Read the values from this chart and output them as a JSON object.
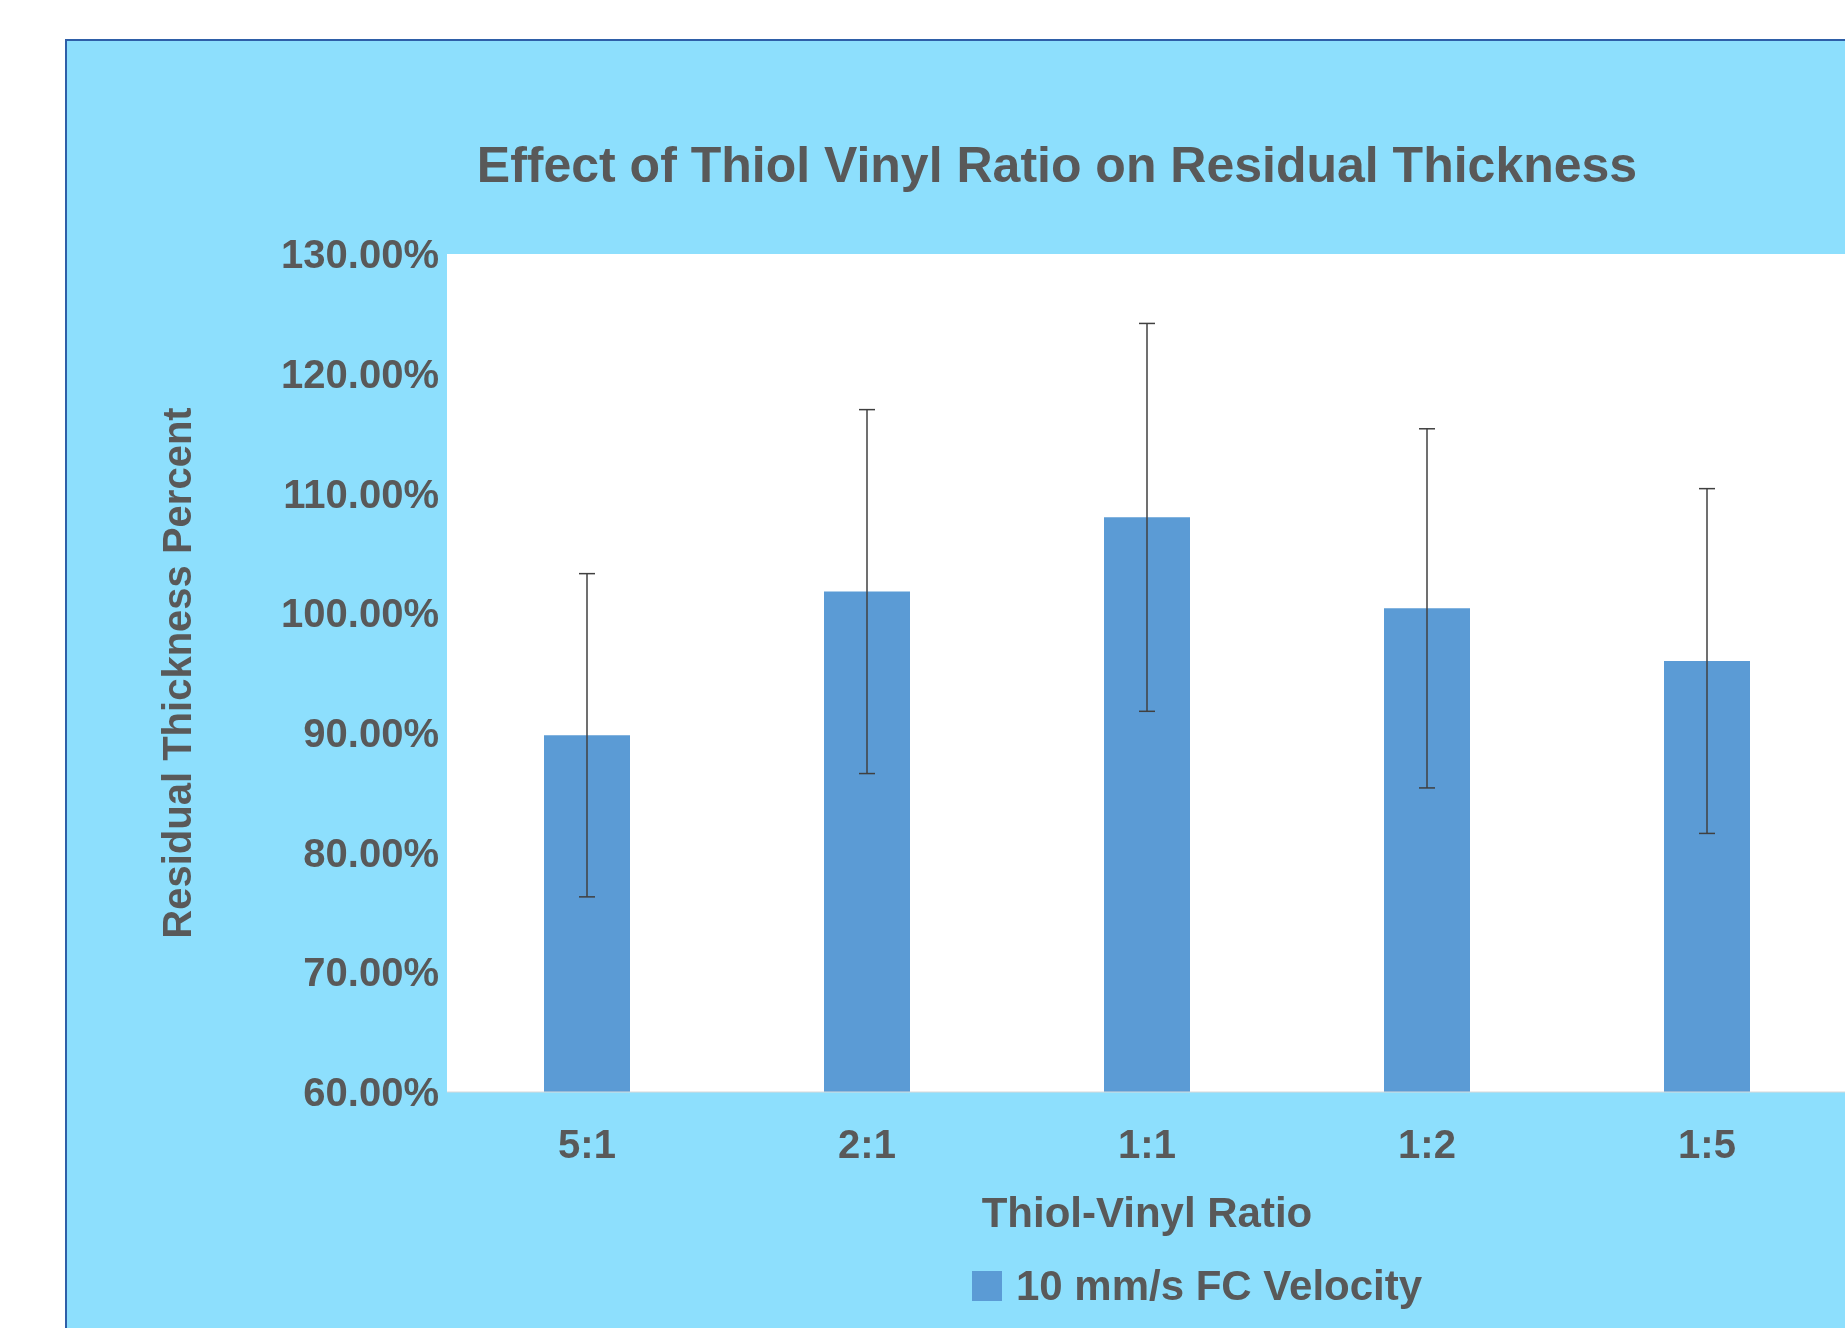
{
  "chart_data": {
    "type": "bar",
    "title": "Effect of Thiol Vinyl Ratio on Residual Thickness",
    "xlabel": "Thiol-Vinyl Ratio",
    "ylabel": "Residual Thickness Percent",
    "categories": [
      "5:1",
      "2:1",
      "1:1",
      "1:2",
      "1:5"
    ],
    "series": [
      {
        "name": "10 mm/s FC Velocity",
        "color": "#5b9bd5",
        "values": [
          89.8,
          101.8,
          108.0,
          100.4,
          96.0
        ],
        "errors": [
          13.5,
          15.2,
          16.2,
          15.0,
          14.4
        ]
      }
    ],
    "ylim": [
      60,
      130
    ],
    "yticks": [
      {
        "value": 60,
        "label": "60.00%"
      },
      {
        "value": 70,
        "label": "70.00%"
      },
      {
        "value": 80,
        "label": "80.00%"
      },
      {
        "value": 90,
        "label": "90.00%"
      },
      {
        "value": 100,
        "label": "100.00%"
      },
      {
        "value": 110,
        "label": "110.00%"
      },
      {
        "value": 120,
        "label": "120.00%"
      },
      {
        "value": 130,
        "label": "130.00%"
      }
    ],
    "grid": false,
    "legend": "bottom"
  }
}
